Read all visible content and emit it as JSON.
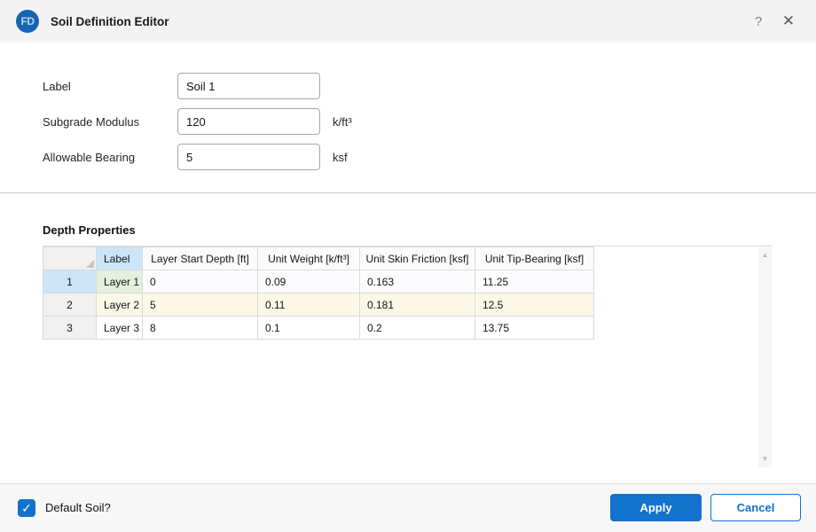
{
  "titlebar": {
    "app_icon_text": "FD",
    "title": "Soil Definition Editor",
    "help_glyph": "?",
    "close_glyph": "✕"
  },
  "form": {
    "fields": [
      {
        "label": "Label",
        "value": "Soil 1",
        "unit": ""
      },
      {
        "label": "Subgrade Modulus",
        "value": "120",
        "unit": "k/ft³"
      },
      {
        "label": "Allowable Bearing",
        "value": "5",
        "unit": "ksf"
      }
    ]
  },
  "depth_properties": {
    "heading": "Depth Properties",
    "columns": [
      "Label",
      "Layer Start Depth [ft]",
      "Unit Weight [k/ft³]",
      "Unit Skin Friction [ksf]",
      "Unit Tip-Bearing [ksf]"
    ],
    "rows": [
      {
        "num": "1",
        "cells": [
          "Layer 1",
          "0",
          "0.09",
          "0.163",
          "11.25"
        ]
      },
      {
        "num": "2",
        "cells": [
          "Layer 2",
          "5",
          "0.11",
          "0.181",
          "12.5"
        ]
      },
      {
        "num": "3",
        "cells": [
          "Layer 3",
          "8",
          "0.1",
          "0.2",
          "13.75"
        ]
      }
    ]
  },
  "footer": {
    "checkbox_label": "Default Soil?",
    "checkbox_checked": true,
    "apply_label": "Apply",
    "cancel_label": "Cancel"
  },
  "icons": {
    "scroll_up": "▲",
    "scroll_down": "▼",
    "check": "✓"
  },
  "colors": {
    "accent": "#1272cc",
    "titlebar_bg": "#f3f3f3",
    "selected_header_blue": "#cce4f7",
    "active_cell_green": "#e2f0dd",
    "modified_row_yellow": "#fbf8e7",
    "row_header_gray": "#f1f1f1"
  }
}
